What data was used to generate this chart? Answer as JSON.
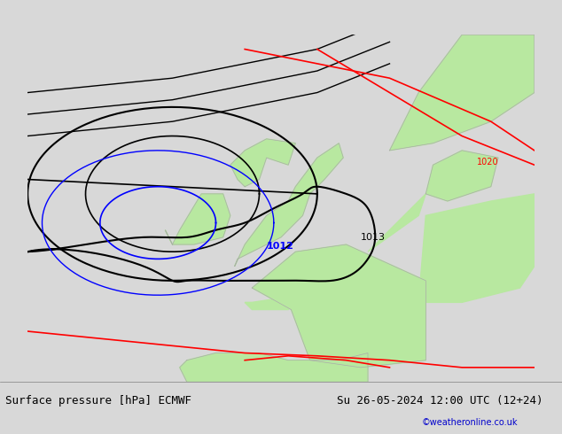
{
  "title_left": "Surface pressure [hPa] ECMWF",
  "title_right": "Su 26-05-2024 12:00 UTC (12+24)",
  "copyright": "©weatheronline.co.uk",
  "background_color": "#d8d8d8",
  "land_color": "#b8e8a0",
  "fig_width": 6.34,
  "fig_height": 4.9,
  "dpi": 100,
  "bottom_bar_color": "#e8e8e8",
  "title_fontsize": 9,
  "copyright_color": "#0000cc",
  "label_1012": "1012",
  "label_1013": "1013",
  "label_1020": "1020",
  "blue_line_color": "#0000ff",
  "black_line_color": "#000000",
  "red_line_color": "#ff0000"
}
